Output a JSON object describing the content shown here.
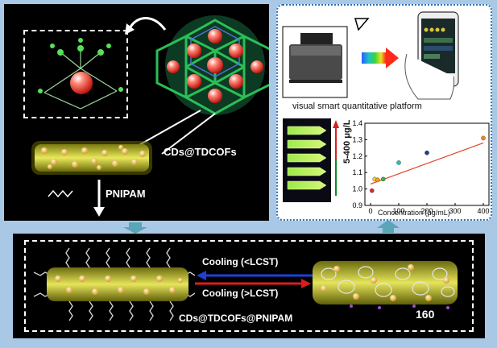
{
  "synthesis": {
    "composite_label": "CDs@TDCOFs",
    "polymer_label": "PNIPAM"
  },
  "platform": {
    "title": "visual smart quantitative platform",
    "range_label": "5-400 μg/L"
  },
  "chart_data": {
    "type": "scatter",
    "xlabel": "Concentration (μg/mL)",
    "ylabel": "",
    "xlim": [
      -20,
      420
    ],
    "ylim": [
      0.9,
      1.4
    ],
    "x_ticks": [
      "0",
      "100",
      "200",
      "300",
      "400"
    ],
    "y_ticks": [
      "0.9",
      "1.0",
      "1.1",
      "1.2",
      "1.3",
      "1.4"
    ],
    "points": [
      {
        "x": 5,
        "y": 0.99,
        "color": "#d62b2b"
      },
      {
        "x": 15,
        "y": 1.06,
        "color": "#f0d020"
      },
      {
        "x": 25,
        "y": 1.055,
        "color": "#e8a020"
      },
      {
        "x": 45,
        "y": 1.06,
        "color": "#3cb34a"
      },
      {
        "x": 100,
        "y": 1.16,
        "color": "#19c4c4"
      },
      {
        "x": 200,
        "y": 1.22,
        "color": "#1a3c8f"
      },
      {
        "x": 400,
        "y": 1.31,
        "color": "#f08a24"
      }
    ],
    "fit_line": [
      [
        0,
        1.03
      ],
      [
        400,
        1.28
      ]
    ],
    "fit_color": "#e04424"
  },
  "thermo": {
    "cooling_lower": "Cooling (<LCST)",
    "cooling_higher": "Cooling (>LCST)",
    "product_label": "CDs@TDCOFs@PNIPAM",
    "page_number": "160"
  },
  "colors": {
    "background": "#a9c8e6",
    "panel": "#000000",
    "arrow_blue": "#1f3fd6",
    "arrow_red": "#d81e1e",
    "connector": "#5aa6b8"
  }
}
